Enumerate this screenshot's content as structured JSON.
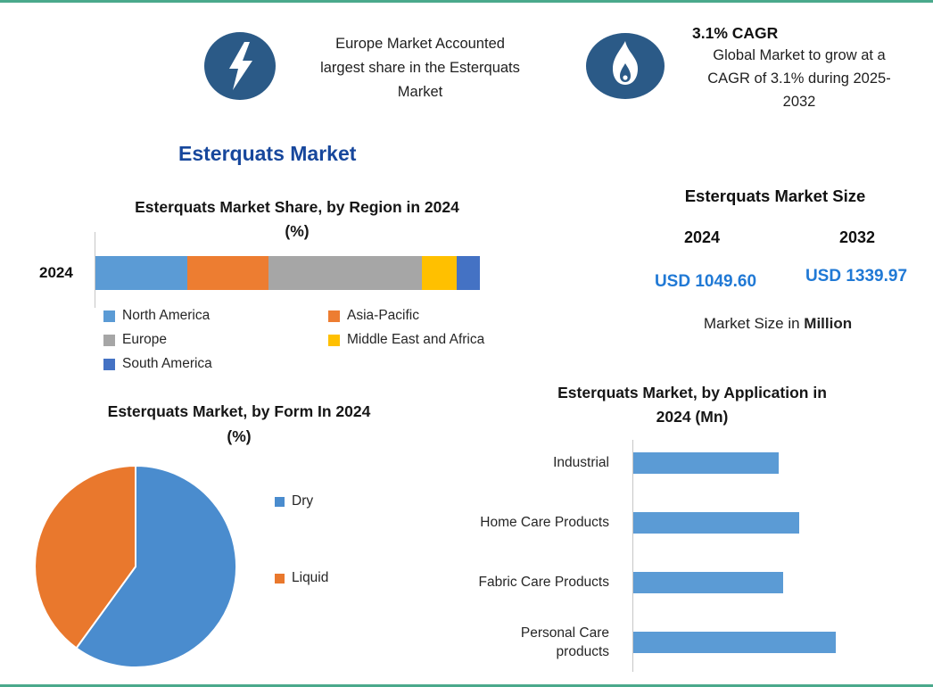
{
  "page": {
    "frame_color": "#4aa98c",
    "background": "#ffffff"
  },
  "banner": {
    "left": {
      "icon": "lightning-icon",
      "icon_color": "#2b5a87",
      "text": "Europe Market Accounted\nlargest share in the Esterquats\nMarket"
    },
    "right": {
      "icon": "flame-icon",
      "icon_color": "#2b5a87",
      "headline": "3.1% CAGR",
      "text": "Global Market to grow at a\nCAGR of 3.1% during 2025-\n2032"
    }
  },
  "main_title": "Esterquats Market",
  "region_chart": {
    "title": "Esterquats Market Share, by Region in 2024\n(%)",
    "y_label": "2024"
  },
  "market_size": {
    "title": "Esterquats Market Size",
    "year_left": "2024",
    "year_right": "2032",
    "value_left": "USD 1049.60",
    "value_right": "USD 1339.97",
    "value_color": "#2079d5",
    "caption_prefix": "Market Size in ",
    "caption_bold": "Million"
  },
  "form_chart": {
    "title": "Esterquats Market, by Form In 2024\n(%)"
  },
  "application_chart": {
    "title": "Esterquats Market, by Application in\n2024 (Mn)"
  },
  "chart_data": [
    {
      "type": "bar",
      "subtype": "stacked-horizontal",
      "title": "Esterquats Market Share, by Region in 2024 (%)",
      "categories": [
        "2024"
      ],
      "series": [
        {
          "name": "North America",
          "values": [
            24
          ],
          "color": "#5B9BD5"
        },
        {
          "name": "Asia-Pacific",
          "values": [
            21
          ],
          "color": "#ED7D31"
        },
        {
          "name": "Europe",
          "values": [
            40
          ],
          "color": "#A6A6A6"
        },
        {
          "name": "Middle East and Africa",
          "values": [
            9
          ],
          "color": "#FFC000"
        },
        {
          "name": "South America",
          "values": [
            6
          ],
          "color": "#4472C4"
        }
      ],
      "xlim": [
        0,
        100
      ],
      "unit": "%",
      "legend_position": "bottom",
      "grid": false,
      "note": "segment shares estimated from bar widths"
    },
    {
      "type": "pie",
      "title": "Esterquats Market, by Form In 2024 (%)",
      "labels": [
        "Dry",
        "Liquid"
      ],
      "values": [
        60,
        40
      ],
      "colors": [
        "#4a8cce",
        "#e9782d"
      ],
      "start_angle_deg": 0,
      "direction": "clockwise",
      "legend_position": "right",
      "note": "shares estimated from slice angles"
    },
    {
      "type": "bar",
      "subtype": "horizontal",
      "title": "Esterquats Market, by Application in 2024 (Mn)",
      "categories": [
        "Industrial",
        "Home Care Products",
        "Fabric Care Products",
        "Personal Care\nproducts"
      ],
      "values": [
        72,
        82,
        74,
        100
      ],
      "unit": "relative length, % of longest bar (absolute Mn values not labeled on chart)",
      "color": "#5B9BD5",
      "grid": false,
      "legend_position": "none"
    }
  ]
}
